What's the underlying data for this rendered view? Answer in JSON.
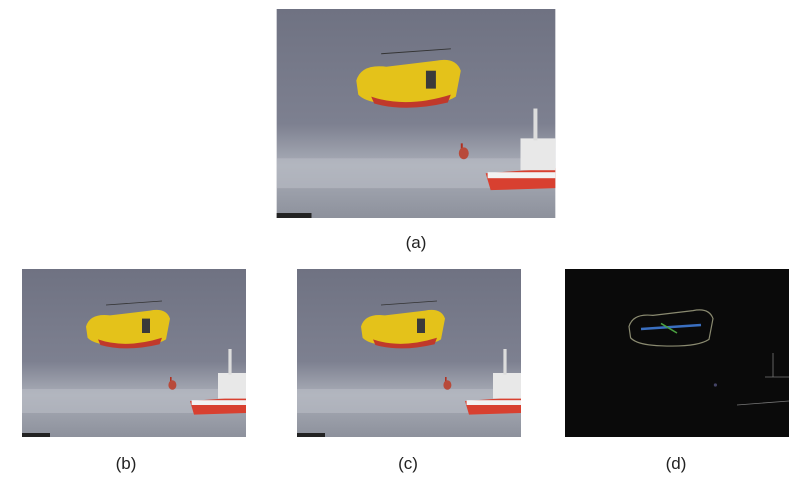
{
  "figures": [
    {
      "caption": "(a)"
    },
    {
      "caption": "(b)"
    },
    {
      "caption": "(c)"
    },
    {
      "caption": "(d)"
    }
  ]
}
